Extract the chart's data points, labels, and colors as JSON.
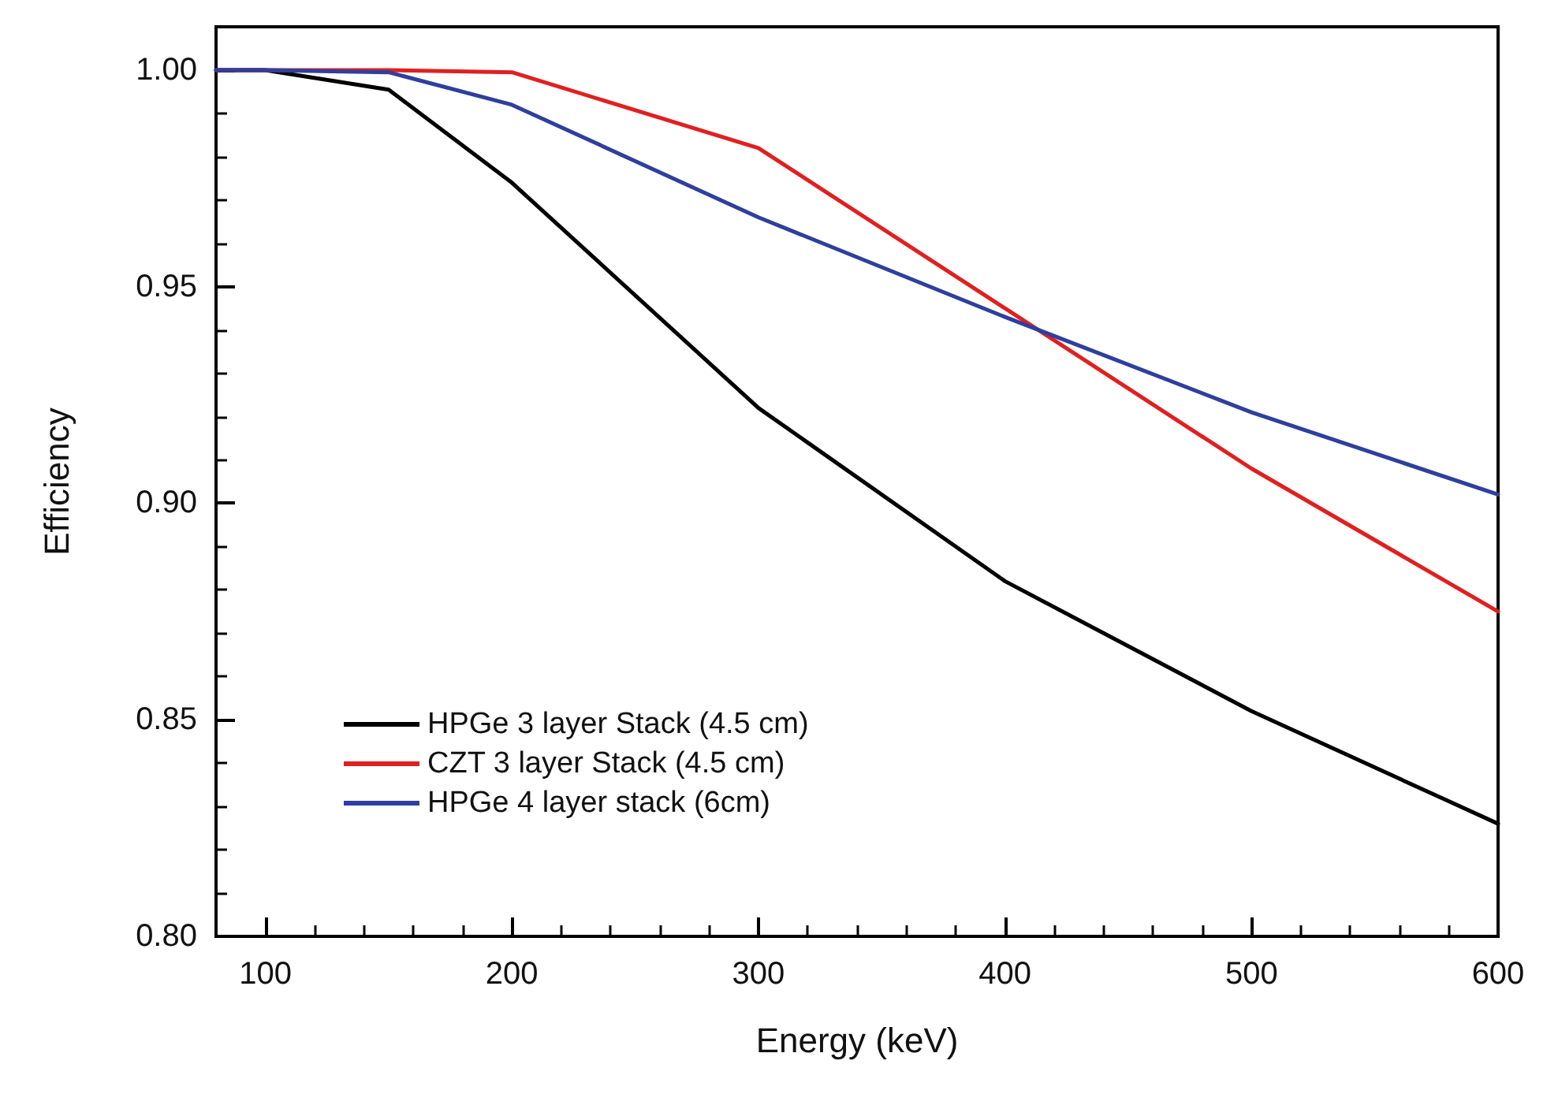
{
  "chart_data": {
    "type": "line",
    "xlabel": "Energy (keV)",
    "ylabel": "Efficiency",
    "xlim": [
      80,
      600
    ],
    "xticks": [
      100,
      200,
      300,
      400,
      500,
      600
    ],
    "ylim": [
      0.8,
      1.01
    ],
    "yticks": [
      {
        "value": 0.8,
        "label": "0.80"
      },
      {
        "value": 0.85,
        "label": "0.85"
      },
      {
        "value": 0.9,
        "label": "0.90"
      },
      {
        "value": 0.95,
        "label": "0.95"
      },
      {
        "value": 1.0,
        "label": "1.00"
      }
    ],
    "legend": "bottom left",
    "grid": false,
    "marker": "none",
    "line_style": "solid",
    "x": [
      80,
      100,
      150,
      200,
      300,
      400,
      500,
      600
    ],
    "series": [
      {
        "name": "HPGe 3 layer Stack (4.5 cm)",
        "color": "#000000",
        "values": [
          1.0,
          1.0,
          0.9955,
          0.974,
          0.922,
          0.882,
          0.852,
          0.826
        ]
      },
      {
        "name": "CZT 3 layer Stack (4.5 cm)",
        "color": "#e02020",
        "values": [
          1.0,
          1.0,
          1.0,
          0.9995,
          0.982,
          0.945,
          0.908,
          0.875
        ]
      },
      {
        "name": "HPGe 4 layer stack (6cm)",
        "color": "#2e3f9e",
        "values": [
          1.0,
          1.0,
          0.9995,
          0.992,
          0.966,
          0.943,
          0.921,
          0.902
        ]
      }
    ]
  }
}
